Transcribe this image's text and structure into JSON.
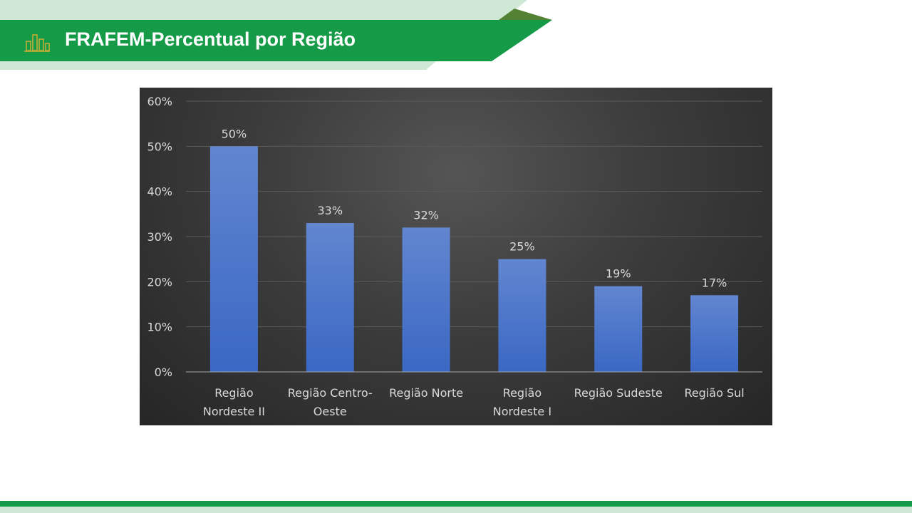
{
  "header": {
    "title": "FRAFEM-Percentual por Região",
    "icon": "bar-chart-icon"
  },
  "colors": {
    "brand_green": "#159a48",
    "light_green": "#cfe8d6",
    "olive": "#548235",
    "bar": "#4472c4"
  },
  "chart_data": {
    "type": "bar",
    "title": "",
    "xlabel": "",
    "ylabel": "",
    "categories": [
      [
        "Região",
        "Nordeste II"
      ],
      [
        "Região Centro-",
        "Oeste"
      ],
      [
        "Região Norte"
      ],
      [
        "Região",
        "Nordeste I"
      ],
      [
        "Região Sudeste"
      ],
      [
        "Região Sul"
      ]
    ],
    "values": [
      50,
      33,
      32,
      25,
      19,
      17
    ],
    "data_labels": [
      "50%",
      "33%",
      "32%",
      "25%",
      "19%",
      "17%"
    ],
    "ylim": [
      0,
      60
    ],
    "yticks": [
      "0%",
      "10%",
      "20%",
      "30%",
      "40%",
      "50%",
      "60%"
    ],
    "grid": true,
    "legend": "none"
  }
}
